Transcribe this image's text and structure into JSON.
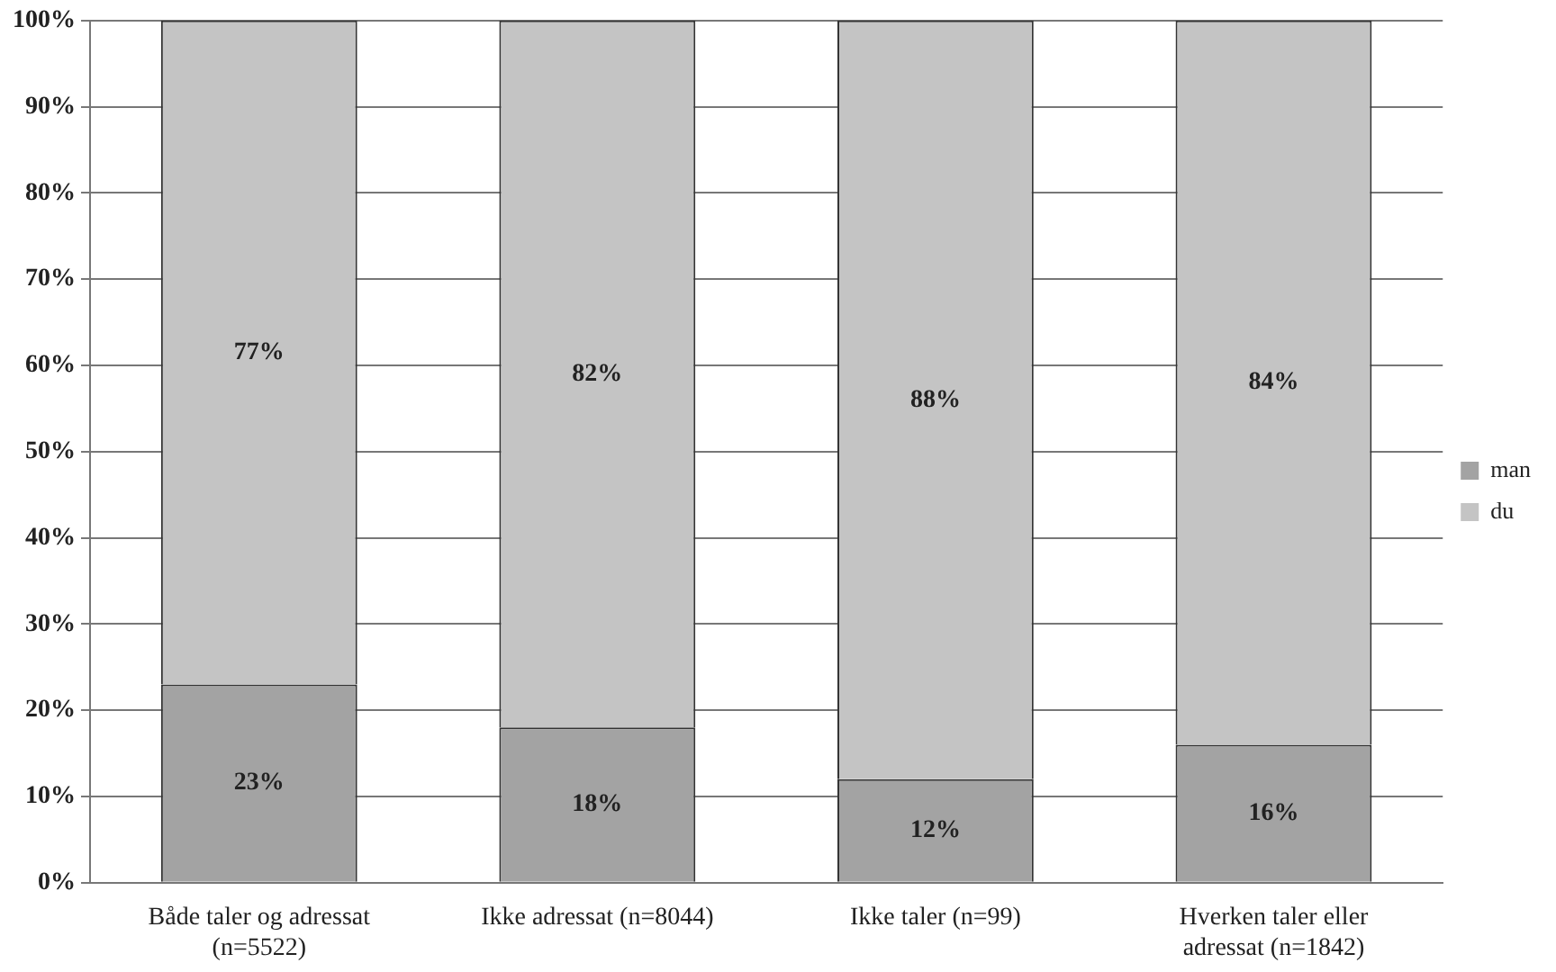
{
  "chart_data": {
    "type": "bar",
    "stacked": true,
    "categories": [
      "Både taler og adressat (n=5522)",
      "Ikke adressat (n=8044)",
      "Ikke taler (n=99)",
      "Hverken taler eller adressat (n=1842)"
    ],
    "series": [
      {
        "name": "man",
        "color": "#a3a3a3",
        "values": [
          23,
          18,
          12,
          16
        ],
        "value_labels": [
          "23%",
          "18%",
          "12%",
          "16%"
        ]
      },
      {
        "name": "du",
        "color": "#c4c4c4",
        "values": [
          77,
          82,
          88,
          84
        ],
        "value_labels": [
          "77%",
          "82%",
          "88%",
          "84%"
        ]
      }
    ],
    "ylim": [
      0,
      100
    ],
    "yticks": [
      {
        "value": 0,
        "label": "0%"
      },
      {
        "value": 10,
        "label": "10%"
      },
      {
        "value": 20,
        "label": "20%"
      },
      {
        "value": 30,
        "label": "30%"
      },
      {
        "value": 40,
        "label": "40%"
      },
      {
        "value": 50,
        "label": "50%"
      },
      {
        "value": 60,
        "label": "60%"
      },
      {
        "value": 70,
        "label": "70%"
      },
      {
        "value": 80,
        "label": "80%"
      },
      {
        "value": 90,
        "label": "90%"
      },
      {
        "value": 100,
        "label": "100%"
      }
    ],
    "grid": "y",
    "legend": "right"
  }
}
